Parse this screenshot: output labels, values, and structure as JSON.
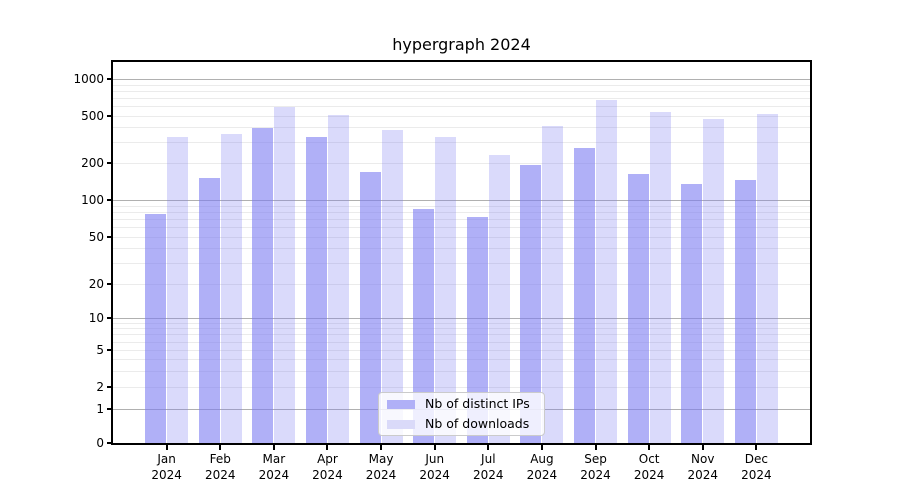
{
  "figure": {
    "title": "hypergraph 2024",
    "background_color": "#ffffff"
  },
  "chart_data": {
    "type": "bar",
    "title": "hypergraph 2024",
    "categories": [
      "Jan",
      "Feb",
      "Mar",
      "Apr",
      "May",
      "Jun",
      "Jul",
      "Aug",
      "Sep",
      "Oct",
      "Nov",
      "Dec"
    ],
    "x_year_label": "2024",
    "series": [
      {
        "name": "Nb of distinct IPs",
        "color_hex": "#7b7bf2",
        "alpha": 0.6,
        "values": [
          77,
          151,
          395,
          330,
          170,
          84,
          73,
          193,
          268,
          163,
          135,
          146
        ]
      },
      {
        "name": "Nb of downloads",
        "color_hex": "#7b7bf2",
        "alpha": 0.28,
        "values": [
          330,
          350,
          590,
          505,
          380,
          335,
          235,
          410,
          675,
          540,
          470,
          520
        ]
      }
    ],
    "xlabel": "",
    "ylabel": "",
    "y_scale": "symlog",
    "y_tick_labels": [
      "0",
      "1",
      "2",
      "5",
      "10",
      "20",
      "50",
      "100",
      "200",
      "500",
      "1000"
    ],
    "y_ticks": [
      0,
      1,
      2,
      5,
      10,
      20,
      50,
      100,
      200,
      500,
      1000
    ],
    "ylim": [
      0,
      1400
    ],
    "grid": true,
    "grid_major_color": "#b0b0b0",
    "grid_minor_color": "#ebebeb",
    "legend_position": "lower center",
    "legend_entries": [
      "Nb of distinct IPs",
      "Nb of downloads"
    ]
  }
}
